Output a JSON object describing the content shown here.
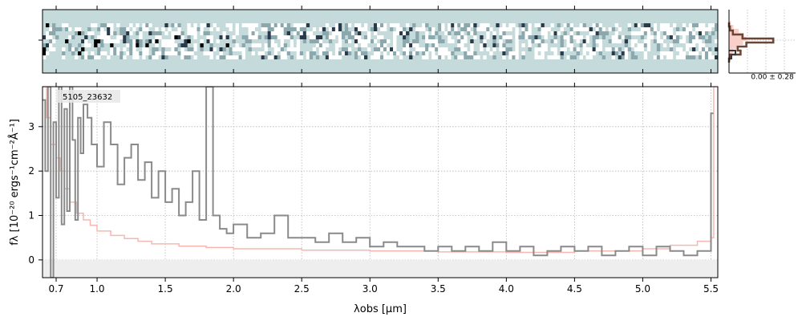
{
  "chart_data": [
    {
      "type": "heatmap",
      "description_of_content": "2D spectrum cutout",
      "colormap": [
        "#ffffff",
        "#c5dbdb",
        "#8aa8ad",
        "#2a3a4a",
        "#000000"
      ],
      "background_color": "#c5dbdb"
    },
    {
      "type": "line",
      "title": "",
      "annotation": "0.00 ± 0.28",
      "colors": {
        "fill": "#f9cfc9",
        "step": "#6b4535",
        "outline": "#3a3a3a"
      },
      "grid": true
    },
    {
      "type": "line",
      "label": "5105_23632",
      "xlabel": "λobs [μm]",
      "ylabel": "fλ [10⁻²⁰ ergs⁻¹cm⁻²Å⁻¹]",
      "xlim": [
        0.6,
        5.55
      ],
      "ylim": [
        -0.4,
        3.9
      ],
      "x_ticks": [
        {
          "value": 0.7,
          "label": "0.7"
        },
        {
          "value": 1.0,
          "label": "1.0"
        },
        {
          "value": 1.5,
          "label": "1.5"
        },
        {
          "value": 2.0,
          "label": "2.0"
        },
        {
          "value": 2.5,
          "label": "2.5"
        },
        {
          "value": 3.0,
          "label": "3.0"
        },
        {
          "value": 3.5,
          "label": "3.5"
        },
        {
          "value": 4.0,
          "label": "4.0"
        },
        {
          "value": 4.5,
          "label": "4.5"
        },
        {
          "value": 5.0,
          "label": "5.0"
        },
        {
          "value": 5.5,
          "label": "5.5"
        }
      ],
      "y_ticks": [
        {
          "value": 0,
          "label": "0"
        },
        {
          "value": 1,
          "label": "1"
        },
        {
          "value": 2,
          "label": "2"
        },
        {
          "value": 3,
          "label": "3"
        }
      ],
      "grid": true,
      "colors": {
        "data": "#8a8a8a",
        "error": "#f7b7b0",
        "zero_band": "#eeeeee"
      },
      "series": [
        {
          "role": "data",
          "x": [
            0.6,
            0.62,
            0.64,
            0.66,
            0.68,
            0.7,
            0.72,
            0.74,
            0.76,
            0.78,
            0.8,
            0.82,
            0.84,
            0.86,
            0.88,
            0.9,
            0.93,
            0.96,
            1.0,
            1.05,
            1.1,
            1.15,
            1.2,
            1.25,
            1.3,
            1.35,
            1.4,
            1.45,
            1.5,
            1.55,
            1.6,
            1.65,
            1.7,
            1.75,
            1.8,
            1.85,
            1.9,
            1.95,
            2.0,
            2.1,
            2.2,
            2.3,
            2.4,
            2.5,
            2.6,
            2.7,
            2.8,
            2.9,
            3.0,
            3.1,
            3.2,
            3.3,
            3.4,
            3.5,
            3.6,
            3.7,
            3.8,
            3.9,
            4.0,
            4.1,
            4.2,
            4.3,
            4.4,
            4.5,
            4.6,
            4.7,
            4.8,
            4.9,
            5.0,
            5.1,
            5.2,
            5.3,
            5.4,
            5.5
          ],
          "y": [
            3.6,
            2.0,
            3.9,
            -0.4,
            3.1,
            1.4,
            3.9,
            0.8,
            3.4,
            1.1,
            3.9,
            2.7,
            0.9,
            3.2,
            2.4,
            3.5,
            3.2,
            2.6,
            2.1,
            3.1,
            2.6,
            1.7,
            2.3,
            2.6,
            1.8,
            2.2,
            1.4,
            2.0,
            1.3,
            1.6,
            1.0,
            1.3,
            2.0,
            0.9,
            3.9,
            1.0,
            0.7,
            0.6,
            0.8,
            0.5,
            0.6,
            1.0,
            0.5,
            0.5,
            0.4,
            0.6,
            0.4,
            0.5,
            0.3,
            0.4,
            0.3,
            0.3,
            0.2,
            0.3,
            0.2,
            0.3,
            0.2,
            0.4,
            0.2,
            0.3,
            0.1,
            0.2,
            0.3,
            0.2,
            0.3,
            0.1,
            0.2,
            0.3,
            0.1,
            0.3,
            0.2,
            0.1,
            0.2,
            3.3
          ]
        },
        {
          "role": "error",
          "x": [
            0.6,
            0.63,
            0.66,
            0.7,
            0.73,
            0.76,
            0.8,
            0.85,
            0.9,
            0.95,
            1.0,
            1.1,
            1.2,
            1.3,
            1.4,
            1.6,
            1.8,
            2.0,
            2.5,
            3.0,
            3.5,
            4.0,
            4.5,
            5.0,
            5.2,
            5.4,
            5.5,
            5.52
          ],
          "y": [
            3.9,
            3.2,
            2.6,
            2.3,
            2.0,
            1.6,
            1.3,
            1.05,
            0.9,
            0.78,
            0.65,
            0.55,
            0.48,
            0.42,
            0.36,
            0.31,
            0.28,
            0.25,
            0.22,
            0.2,
            0.18,
            0.17,
            0.2,
            0.25,
            0.33,
            0.42,
            0.5,
            3.9
          ]
        }
      ]
    }
  ]
}
